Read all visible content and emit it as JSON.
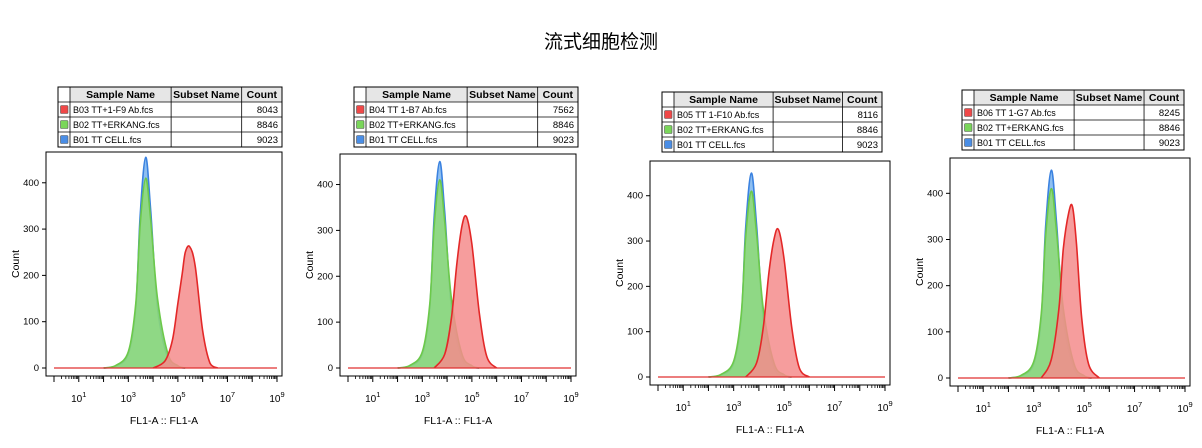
{
  "page_title": "流式细胞检测",
  "chart_data": [
    {
      "type": "area",
      "xlabel": "FL1-A :: FL1-A",
      "ylabel": "Count",
      "x_scale": "log",
      "xlim": [
        1,
        1000000000
      ],
      "ylim": [
        0,
        460
      ],
      "y_ticks": [
        0,
        100,
        200,
        300,
        400
      ],
      "x_tick_exponents": [
        1,
        3,
        5,
        7,
        9
      ],
      "legend_headers": [
        "Sample Name",
        "Subset Name",
        "Count"
      ],
      "legend": [
        {
          "name": "B03 TT+1-F9 Ab.fcs",
          "subset": "",
          "count": "8043",
          "color": "#f04848"
        },
        {
          "name": "B02 TT+ERKANG.fcs",
          "subset": "",
          "count": "8846",
          "color": "#7ad65a"
        },
        {
          "name": "B01 TT  CELL.fcs",
          "subset": "",
          "count": "9023",
          "color": "#4a8ee6"
        }
      ],
      "series": [
        {
          "name": "B01 TT  CELL.fcs",
          "color": "#3b82e0",
          "fill": "#7ab4ee",
          "x": [
            100,
            300,
            1000,
            2000,
            3000,
            5000,
            8000,
            15000,
            40000,
            100000,
            200000
          ],
          "y": [
            0,
            4,
            30,
            130,
            330,
            455,
            340,
            130,
            20,
            3,
            0
          ]
        },
        {
          "name": "B02 TT+ERKANG.fcs",
          "color": "#6cc94a",
          "fill": "#8fdc72",
          "x": [
            100,
            300,
            1000,
            2000,
            3000,
            5000,
            8000,
            15000,
            40000,
            100000,
            200000
          ],
          "y": [
            0,
            5,
            35,
            140,
            310,
            410,
            320,
            150,
            30,
            5,
            0
          ]
        },
        {
          "name": "B03 TT+1-F9 Ab.fcs",
          "color": "#e32828",
          "fill": "#f58c8c",
          "x": [
            10000,
            30000,
            60000,
            100000,
            150000,
            200000,
            300000,
            500000,
            1000000,
            2000000,
            4000000
          ],
          "y": [
            0,
            15,
            60,
            140,
            205,
            250,
            262,
            220,
            80,
            10,
            0
          ]
        }
      ]
    },
    {
      "type": "area",
      "xlabel": "FL1-A :: FL1-A",
      "ylabel": "Count",
      "x_scale": "log",
      "xlim": [
        1,
        1000000000
      ],
      "ylim": [
        0,
        460
      ],
      "y_ticks": [
        0,
        100,
        200,
        300,
        400
      ],
      "x_tick_exponents": [
        1,
        3,
        5,
        7,
        9
      ],
      "legend_headers": [
        "Sample Name",
        "Subset Name",
        "Count"
      ],
      "legend": [
        {
          "name": "B04 TT 1-B7 Ab.fcs",
          "subset": "",
          "count": "7562",
          "color": "#f04848"
        },
        {
          "name": "B02 TT+ERKANG.fcs",
          "subset": "",
          "count": "8846",
          "color": "#7ad65a"
        },
        {
          "name": "B01 TT  CELL.fcs",
          "subset": "",
          "count": "9023",
          "color": "#4a8ee6"
        }
      ],
      "series": [
        {
          "name": "B01 TT  CELL.fcs",
          "color": "#3b82e0",
          "fill": "#7ab4ee",
          "x": [
            100,
            300,
            1000,
            2000,
            3000,
            5000,
            8000,
            15000,
            40000,
            100000,
            200000
          ],
          "y": [
            0,
            4,
            30,
            130,
            330,
            450,
            340,
            130,
            20,
            3,
            0
          ]
        },
        {
          "name": "B02 TT+ERKANG.fcs",
          "color": "#6cc94a",
          "fill": "#8fdc72",
          "x": [
            100,
            300,
            1000,
            2000,
            3000,
            5000,
            8000,
            15000,
            40000,
            100000,
            200000
          ],
          "y": [
            0,
            5,
            35,
            140,
            310,
            410,
            320,
            150,
            30,
            5,
            0
          ]
        },
        {
          "name": "B04 TT 1-B7 Ab.fcs",
          "color": "#e32828",
          "fill": "#f58c8c",
          "x": [
            3000,
            8000,
            15000,
            25000,
            40000,
            60000,
            100000,
            200000,
            400000,
            1000000
          ],
          "y": [
            0,
            30,
            110,
            230,
            310,
            330,
            270,
            120,
            25,
            0
          ]
        }
      ]
    },
    {
      "type": "area",
      "xlabel": "FL1-A :: FL1-A",
      "ylabel": "Count",
      "x_scale": "log",
      "xlim": [
        1,
        1000000000
      ],
      "ylim": [
        0,
        470
      ],
      "y_ticks": [
        0,
        100,
        200,
        300,
        400
      ],
      "x_tick_exponents": [
        1,
        3,
        5,
        7,
        9
      ],
      "legend_headers": [
        "Sample Name",
        "Subset Name",
        "Count"
      ],
      "legend": [
        {
          "name": "B05 TT 1-F10 Ab.fcs",
          "subset": "",
          "count": "8116",
          "color": "#f04848"
        },
        {
          "name": "B02 TT+ERKANG.fcs",
          "subset": "",
          "count": "8846",
          "color": "#7ad65a"
        },
        {
          "name": "B01 TT  CELL.fcs",
          "subset": "",
          "count": "9023",
          "color": "#4a8ee6"
        }
      ],
      "series": [
        {
          "name": "B01 TT  CELL.fcs",
          "color": "#3b82e0",
          "fill": "#7ab4ee",
          "x": [
            100,
            300,
            1000,
            2000,
            3000,
            5000,
            8000,
            15000,
            40000,
            100000,
            200000
          ],
          "y": [
            0,
            4,
            30,
            130,
            330,
            450,
            340,
            130,
            20,
            3,
            0
          ]
        },
        {
          "name": "B02 TT+ERKANG.fcs",
          "color": "#6cc94a",
          "fill": "#8fdc72",
          "x": [
            100,
            300,
            1000,
            2000,
            3000,
            5000,
            8000,
            15000,
            40000,
            100000,
            200000
          ],
          "y": [
            0,
            5,
            35,
            140,
            310,
            410,
            320,
            150,
            30,
            5,
            0
          ]
        },
        {
          "name": "B05 TT 1-F10 Ab.fcs",
          "color": "#e32828",
          "fill": "#f58c8c",
          "x": [
            3000,
            8000,
            15000,
            25000,
            40000,
            60000,
            100000,
            200000,
            400000,
            1000000
          ],
          "y": [
            0,
            30,
            110,
            230,
            305,
            325,
            260,
            110,
            20,
            0
          ]
        }
      ]
    },
    {
      "type": "area",
      "xlabel": "FL1-A :: FL1-A",
      "ylabel": "Count",
      "x_scale": "log",
      "xlim": [
        1,
        1000000000
      ],
      "ylim": [
        0,
        470
      ],
      "y_ticks": [
        0,
        100,
        200,
        300,
        400
      ],
      "x_tick_exponents": [
        1,
        3,
        5,
        7,
        9
      ],
      "legend_headers": [
        "Sample Name",
        "Subset Name",
        "Count"
      ],
      "legend": [
        {
          "name": "B06 TT 1-G7 Ab.fcs",
          "subset": "",
          "count": "8245",
          "color": "#f04848"
        },
        {
          "name": "B02 TT+ERKANG.fcs",
          "subset": "",
          "count": "8846",
          "color": "#7ad65a"
        },
        {
          "name": "B01 TT  CELL.fcs",
          "subset": "",
          "count": "9023",
          "color": "#4a8ee6"
        }
      ],
      "series": [
        {
          "name": "B01 TT  CELL.fcs",
          "color": "#3b82e0",
          "fill": "#7ab4ee",
          "x": [
            100,
            300,
            1000,
            2000,
            3000,
            5000,
            8000,
            15000,
            40000,
            100000,
            200000
          ],
          "y": [
            0,
            4,
            30,
            130,
            330,
            450,
            340,
            130,
            20,
            3,
            0
          ]
        },
        {
          "name": "B02 TT+ERKANG.fcs",
          "color": "#6cc94a",
          "fill": "#8fdc72",
          "x": [
            100,
            300,
            1000,
            2000,
            3000,
            5000,
            8000,
            15000,
            40000,
            100000,
            200000
          ],
          "y": [
            0,
            5,
            35,
            140,
            310,
            410,
            320,
            150,
            30,
            5,
            0
          ]
        },
        {
          "name": "B06 TT 1-G7 Ab.fcs",
          "color": "#e32828",
          "fill": "#f58c8c",
          "x": [
            2000,
            5000,
            10000,
            15000,
            25000,
            35000,
            50000,
            80000,
            150000,
            400000
          ],
          "y": [
            0,
            40,
            150,
            280,
            360,
            370,
            290,
            130,
            30,
            0
          ]
        }
      ]
    }
  ]
}
